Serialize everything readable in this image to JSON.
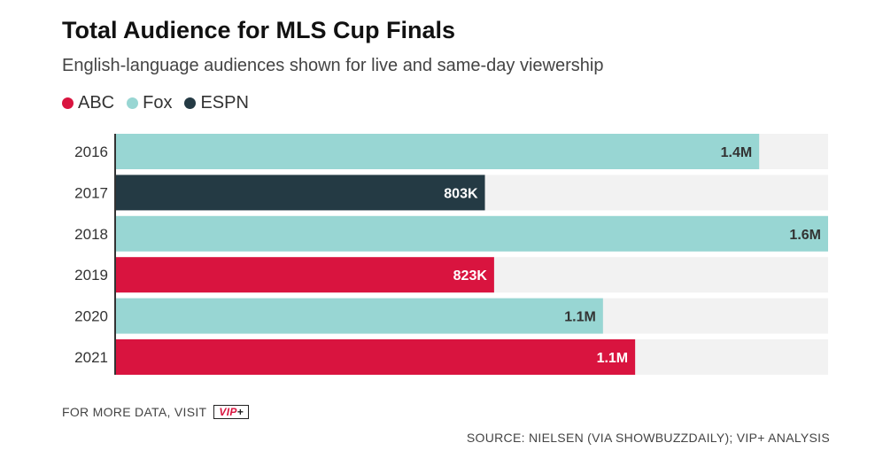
{
  "header": {
    "title": "Total Audience for MLS Cup Finals",
    "subtitle": "English-language audiences shown for live and same-day viewership"
  },
  "colors": {
    "ABC": "#d9143f",
    "Fox": "#98d6d3",
    "ESPN": "#243a44",
    "track": "#f2f2f2",
    "axis": "#333333"
  },
  "chart_data": {
    "type": "bar",
    "orientation": "horizontal",
    "categories": [
      "2016",
      "2017",
      "2018",
      "2019",
      "2020",
      "2021"
    ],
    "values": [
      1.4,
      0.803,
      1.55,
      0.823,
      1.06,
      1.13
    ],
    "value_labels": [
      "1.4M",
      "803K",
      "1.6M",
      "823K",
      "1.1M",
      "1.1M"
    ],
    "networks": [
      "Fox",
      "ESPN",
      "Fox",
      "ABC",
      "Fox",
      "ABC"
    ],
    "legend": [
      "ABC",
      "Fox",
      "ESPN"
    ],
    "legend_position": "top-left",
    "xlim": [
      0,
      1.55
    ],
    "grid": false
  },
  "footer": {
    "more_data": "FOR MORE DATA, VISIT",
    "logo_text": "VIP",
    "logo_plus": "+",
    "source": "SOURCE: NIELSEN (VIA SHOWBUZZDAILY); VIP+ ANALYSIS"
  }
}
